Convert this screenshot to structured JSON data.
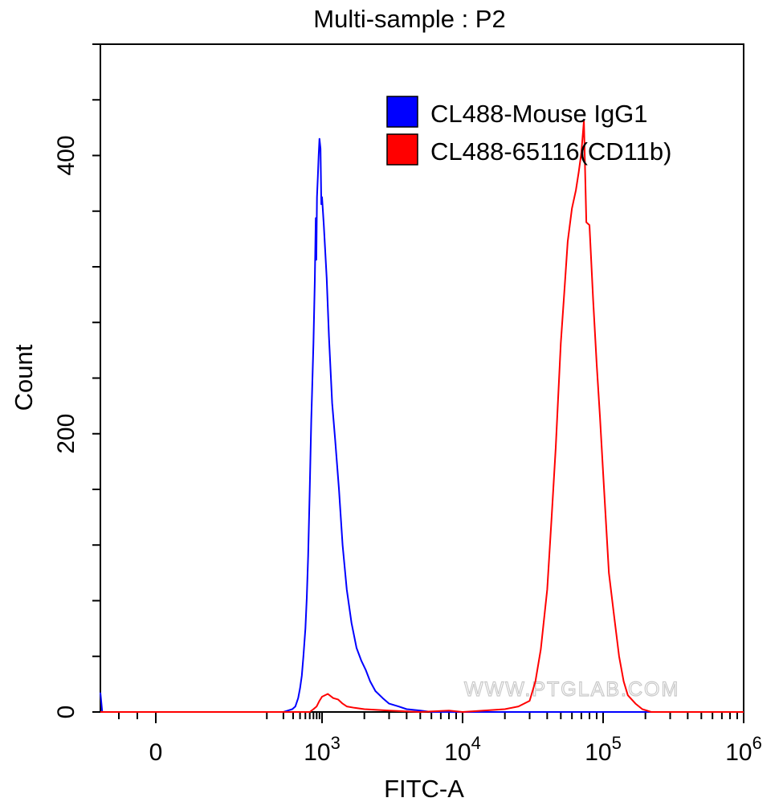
{
  "chart_data": {
    "type": "line",
    "title": "Multi-sample : P2",
    "xlabel": "FITC-A",
    "ylabel": "Count",
    "x_scale": "biexponential",
    "xlim": [
      -300,
      1000000
    ],
    "ylim": [
      0,
      480
    ],
    "x_tick_labels": [
      {
        "value": 0,
        "base": "0",
        "exp": ""
      },
      {
        "value": 1000,
        "base": "10",
        "exp": "3"
      },
      {
        "value": 10000,
        "base": "10",
        "exp": "4"
      },
      {
        "value": 100000,
        "base": "10",
        "exp": "5"
      },
      {
        "value": 1000000,
        "base": "10",
        "exp": "6"
      }
    ],
    "y_tick_labels": [
      {
        "value": 0,
        "label": "0"
      },
      {
        "value": 200,
        "label": "200"
      },
      {
        "value": 400,
        "label": "400"
      }
    ],
    "y_minor_ticks": [
      0,
      40,
      80,
      120,
      160,
      200,
      240,
      280,
      320,
      360,
      400,
      440,
      480
    ],
    "legend_position": "top-right",
    "series": [
      {
        "name": "CL488-Mouse IgG1",
        "color": "#0000ff",
        "points": [
          [
            -300,
            14
          ],
          [
            -290,
            0
          ],
          [
            200,
            0
          ],
          [
            240,
            1
          ],
          [
            290,
            2
          ],
          [
            330,
            4
          ],
          [
            370,
            10
          ],
          [
            400,
            17
          ],
          [
            430,
            26
          ],
          [
            460,
            40
          ],
          [
            500,
            60
          ],
          [
            530,
            82
          ],
          [
            560,
            112
          ],
          [
            600,
            160
          ],
          [
            640,
            210
          ],
          [
            660,
            230
          ],
          [
            700,
            265
          ],
          [
            740,
            310
          ],
          [
            770,
            355
          ],
          [
            790,
            325
          ],
          [
            810,
            370
          ],
          [
            840,
            385
          ],
          [
            870,
            400
          ],
          [
            900,
            412
          ],
          [
            940,
            405
          ],
          [
            970,
            365
          ],
          [
            1000,
            370
          ],
          [
            1030,
            350
          ],
          [
            1080,
            312
          ],
          [
            1120,
            270
          ],
          [
            1180,
            222
          ],
          [
            1240,
            196
          ],
          [
            1320,
            160
          ],
          [
            1400,
            120
          ],
          [
            1500,
            88
          ],
          [
            1620,
            64
          ],
          [
            1760,
            46
          ],
          [
            1900,
            37
          ],
          [
            2050,
            30
          ],
          [
            2200,
            22
          ],
          [
            2400,
            15
          ],
          [
            2700,
            10
          ],
          [
            3000,
            6
          ],
          [
            3500,
            4
          ],
          [
            4000,
            2
          ],
          [
            5000,
            1
          ],
          [
            6000,
            0
          ],
          [
            1000000,
            0
          ]
        ]
      },
      {
        "name": "CL488-65116(CD11b)",
        "color": "#ff0000",
        "points": [
          [
            -300,
            0
          ],
          [
            600,
            0
          ],
          [
            700,
            2
          ],
          [
            800,
            4
          ],
          [
            900,
            8
          ],
          [
            1000,
            11
          ],
          [
            1100,
            13
          ],
          [
            1200,
            10
          ],
          [
            1300,
            9
          ],
          [
            1400,
            6
          ],
          [
            1500,
            4
          ],
          [
            1700,
            3
          ],
          [
            2000,
            2
          ],
          [
            3000,
            1
          ],
          [
            5000,
            0
          ],
          [
            8000,
            1
          ],
          [
            10000,
            0
          ],
          [
            20000,
            2
          ],
          [
            25000,
            4
          ],
          [
            30000,
            8
          ],
          [
            33000,
            22
          ],
          [
            36000,
            45
          ],
          [
            40000,
            88
          ],
          [
            43000,
            140
          ],
          [
            46000,
            190
          ],
          [
            50000,
            265
          ],
          [
            53000,
            302
          ],
          [
            56000,
            338
          ],
          [
            60000,
            362
          ],
          [
            64000,
            375
          ],
          [
            67000,
            388
          ],
          [
            70000,
            402
          ],
          [
            73000,
            425
          ],
          [
            76000,
            352
          ],
          [
            80000,
            350
          ],
          [
            85000,
            296
          ],
          [
            90000,
            250
          ],
          [
            95000,
            212
          ],
          [
            100000,
            172
          ],
          [
            105000,
            135
          ],
          [
            110000,
            100
          ],
          [
            120000,
            68
          ],
          [
            130000,
            40
          ],
          [
            140000,
            22
          ],
          [
            150000,
            12
          ],
          [
            170000,
            6
          ],
          [
            190000,
            2
          ],
          [
            220000,
            0
          ],
          [
            1000000,
            0
          ]
        ]
      }
    ],
    "watermark": "WWW.PTGLAB.COM"
  }
}
